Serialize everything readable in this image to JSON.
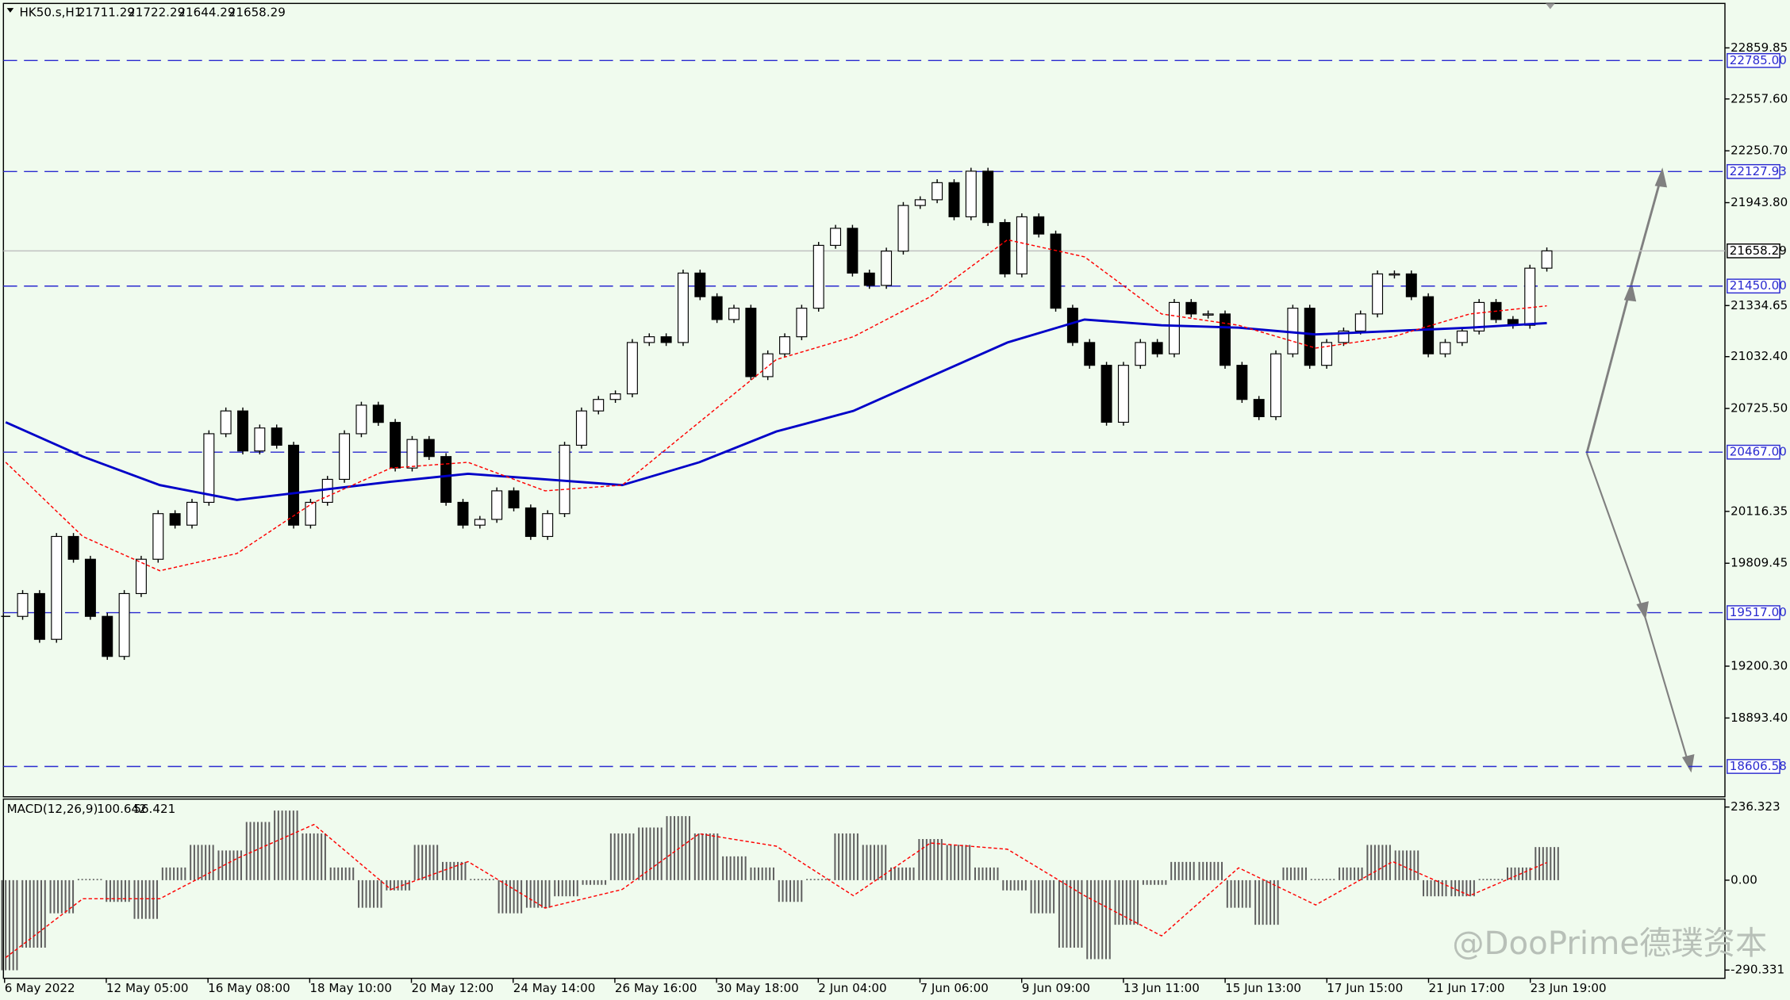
{
  "chart_data": {
    "type": "candlestick",
    "title": "HK50.s,H1",
    "last_bar": {
      "open": 21711.29,
      "high": 21722.29,
      "low": 21644.29,
      "close": 21658.29
    },
    "categories": [
      "6 May 2022",
      "12 May 05:00",
      "16 May 08:00",
      "18 May 10:00",
      "20 May 12:00",
      "24 May 14:00",
      "26 May 16:00",
      "30 May 18:00",
      "2 Jun 04:00",
      "7 Jun 06:00",
      "9 Jun 09:00",
      "13 Jun 11:00",
      "15 Jun 13:00",
      "17 Jun 15:00",
      "21 Jun 17:00",
      "23 Jun 19:00"
    ],
    "closes": [
      19495,
      19630,
      19359,
      19968,
      19833,
      19495,
      19258,
      19630,
      19833,
      20103,
      20035,
      20170,
      20576,
      20711,
      20474,
      20610,
      20508,
      20035,
      20170,
      20306,
      20576,
      20745,
      20643,
      20373,
      20542,
      20441,
      20170,
      20035,
      20069,
      20238,
      20137,
      19968,
      20103,
      20508,
      20711,
      20779,
      20812,
      21116,
      21150,
      21116,
      21527,
      21387,
      21252,
      21319,
      20914,
      21049,
      21150,
      21319,
      21691,
      21792,
      21527,
      21454,
      21657,
      21927,
      21961,
      22062,
      21860,
      22130,
      21826,
      21522,
      21860,
      21758,
      21319,
      21116,
      20981,
      20644,
      20981,
      21116,
      21049,
      21353,
      21285,
      21285,
      20981,
      20779,
      20677,
      21049,
      21319,
      20981,
      21116,
      21184,
      21285,
      21522,
      21522,
      21387,
      21049,
      21116,
      21184,
      21353,
      21252,
      21218,
      21556,
      21658.29
    ],
    "moving_averages": [
      {
        "color": "#0000c8",
        "values": [
          20644,
          20441,
          20272,
          20184,
          20238,
          20292,
          20339,
          20306,
          20272,
          20407,
          20589,
          20711,
          20914,
          21116,
          21252,
          21218,
          21204,
          21164,
          21184,
          21204,
          21231
        ]
      },
      {
        "color": "#ff0000",
        "dashed": true,
        "values": [
          20407,
          19968,
          19765,
          19867,
          20170,
          20373,
          20407,
          20238,
          20272,
          20644,
          21015,
          21150,
          21387,
          21724,
          21623,
          21285,
          21218,
          21083,
          21150,
          21285,
          21333
        ]
      }
    ],
    "ylim": [
      18427,
      23123
    ],
    "yticks": [
      22859.85,
      {
        "value": 22557.6,
        "label": "22557.60"
      },
      {
        "value": 22250.7,
        "label": "22250.70"
      },
      {
        "value": 21943.8,
        "label": "21943.80"
      },
      21334.65,
      {
        "value": 21032.4,
        "label": "21032.40"
      },
      {
        "value": 20725.5,
        "label": "20725.50"
      },
      20116.35,
      19809.45,
      {
        "value": 19200.3,
        "label": "19200.30"
      },
      {
        "value": 18893.4,
        "label": "18893.40"
      }
    ],
    "levels": [
      {
        "value": 22785,
        "label": "22785.00"
      },
      22127.93,
      {
        "value": 21450,
        "label": "21450.00"
      },
      {
        "value": 20467,
        "label": "20467.00"
      },
      {
        "value": 19517,
        "label": "19517.00"
      },
      18606.58
    ],
    "level_color": "#2a2ad0",
    "current_price": 21658.29,
    "macd": {
      "title": "MACD(12,26,9)",
      "main": 100.642,
      "signal": 56.421,
      "histogram": [
        -291,
        -218,
        -107,
        4,
        -70,
        -125,
        41,
        114,
        96,
        188,
        225,
        151,
        41,
        -89,
        -33,
        114,
        59,
        4,
        -107,
        -89,
        -52,
        -15,
        151,
        170,
        207,
        151,
        77,
        41,
        -70,
        4,
        151,
        114,
        41,
        133,
        114,
        41,
        -33,
        -107,
        -218,
        -255,
        -144,
        -15,
        59,
        59,
        -89,
        -144,
        41,
        4,
        41,
        114,
        96,
        -52,
        -52,
        4,
        41,
        107
      ],
      "signal_line": [
        -250,
        -60,
        -60,
        70,
        180,
        -30,
        60,
        -90,
        -30,
        150,
        110,
        -50,
        120,
        100,
        -50,
        -180,
        40,
        -80,
        60,
        -50,
        57
      ],
      "ylim": [
        -317,
        262
      ],
      "yticks": [
        236.323,
        {
          "value": 0,
          "label": "0.00"
        },
        -290.331
      ]
    },
    "watermark": "@DooPrime德璞资本"
  }
}
